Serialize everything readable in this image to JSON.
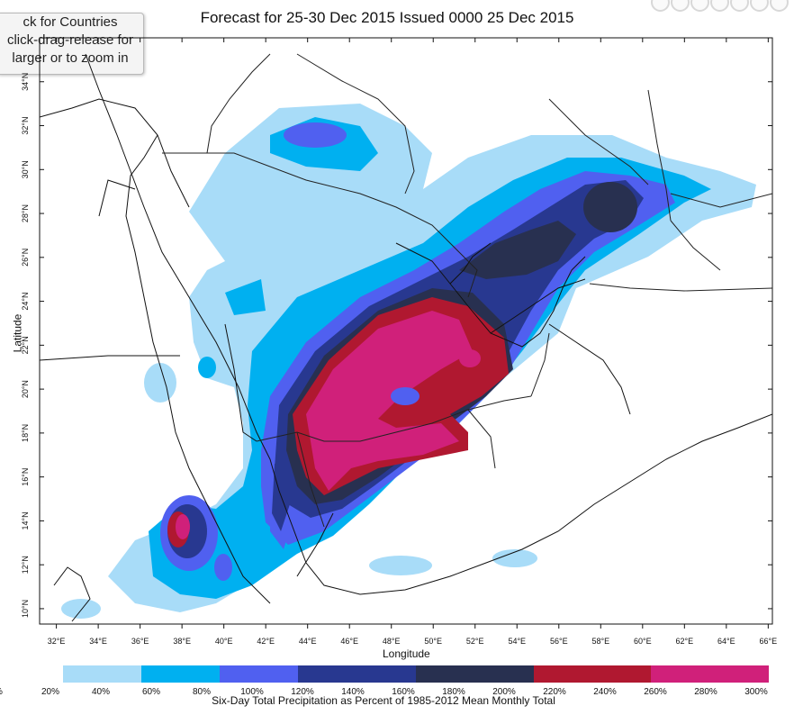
{
  "title": "Forecast for 25-30 Dec 2015 Issued 0000 25 Dec 2015",
  "hint_lines": [
    "ck for Countries",
    "click-drag-release for",
    "larger or to zoom in"
  ],
  "axes": {
    "xlabel": "Longitude",
    "ylabel": "Latitude",
    "lon_ticks": [
      "32°E",
      "34°E",
      "36°E",
      "38°E",
      "40°E",
      "42°E",
      "44°E",
      "46°E",
      "48°E",
      "50°E",
      "52°E",
      "54°E",
      "56°E",
      "58°E",
      "60°E",
      "62°E",
      "64°E",
      "66°E"
    ],
    "lat_ticks": [
      "10°N",
      "12°N",
      "14°N",
      "16°N",
      "18°N",
      "20°N",
      "22°N",
      "24°N",
      "26°N",
      "28°N",
      "30°N",
      "32°N",
      "34°N"
    ],
    "lon_range": [
      31.2,
      66.2
    ],
    "lat_range": [
      9.3,
      36
    ]
  },
  "colorbar": {
    "caption": "Six-Day Total Precipitation as Percent of 1985-2012 Mean Monthly Total",
    "edge_label": "%",
    "labels": [
      "20%",
      "40%",
      "60%",
      "80%",
      "100%",
      "120%",
      "140%",
      "160%",
      "180%",
      "200%",
      "220%",
      "240%",
      "260%",
      "280%",
      "300%"
    ],
    "colors": [
      "#a8dcf8",
      "#a8dcf8",
      "#00b0f0",
      "#00b0f0",
      "#5060f0",
      "#5060f0",
      "#283890",
      "#283890",
      "#283890",
      "#283050",
      "#283050",
      "#283050",
      "#b01830",
      "#b01830",
      "#b01830",
      "#d0207a",
      "#d0207a",
      "#d0207a"
    ]
  },
  "legend_colors": {
    "pct_20_60": "#a8dcf8",
    "pct_60_80": "#00b0f0",
    "pct_80_100": "#5060f0",
    "pct_100_160": "#283890",
    "pct_160_200": "#283050",
    "pct_200_250": "#b01830",
    "pct_250_300": "#d0207a"
  }
}
